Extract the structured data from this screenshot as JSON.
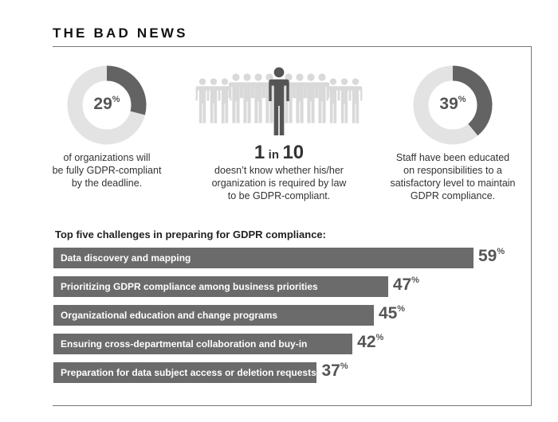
{
  "title": "THE BAD NEWS",
  "stats": [
    {
      "value": "29",
      "pct": "%",
      "fraction": 0.29,
      "lines": [
        "of organizations will",
        "be fully GDPR-compliant",
        "by the deadline."
      ]
    },
    {
      "ratio_big1": "1",
      "ratio_small": "in",
      "ratio_big2": "10",
      "lines": [
        "doesn’t know whether his/her",
        "organization is required by law",
        "to be GDPR-compliant."
      ]
    },
    {
      "value": "39",
      "pct": "%",
      "fraction": 0.39,
      "lines": [
        "Staff have been educated",
        "on responsibilities to a",
        "satisfactory level to maintain",
        "GDPR compliance."
      ]
    }
  ],
  "colors": {
    "donut_dark": "#636363",
    "donut_light": "#e3e3e3",
    "bar": "#6b6b6b",
    "people_light": "#d9d9d9",
    "people_dark": "#555555"
  },
  "chart_data": {
    "type": "bar",
    "orientation": "horizontal",
    "title": "Top five challenges in preparing for GDPR compliance:",
    "categories": [
      "Data discovery and mapping",
      "Prioritizing GDPR compliance among business priorities",
      "Organizational education and change programs",
      "Ensuring cross-departmental collaboration and buy-in",
      "Preparation for data subject access or deletion requests"
    ],
    "values": [
      59,
      47,
      45,
      42,
      37
    ],
    "value_suffix": "%",
    "xlim": [
      0,
      100
    ]
  }
}
